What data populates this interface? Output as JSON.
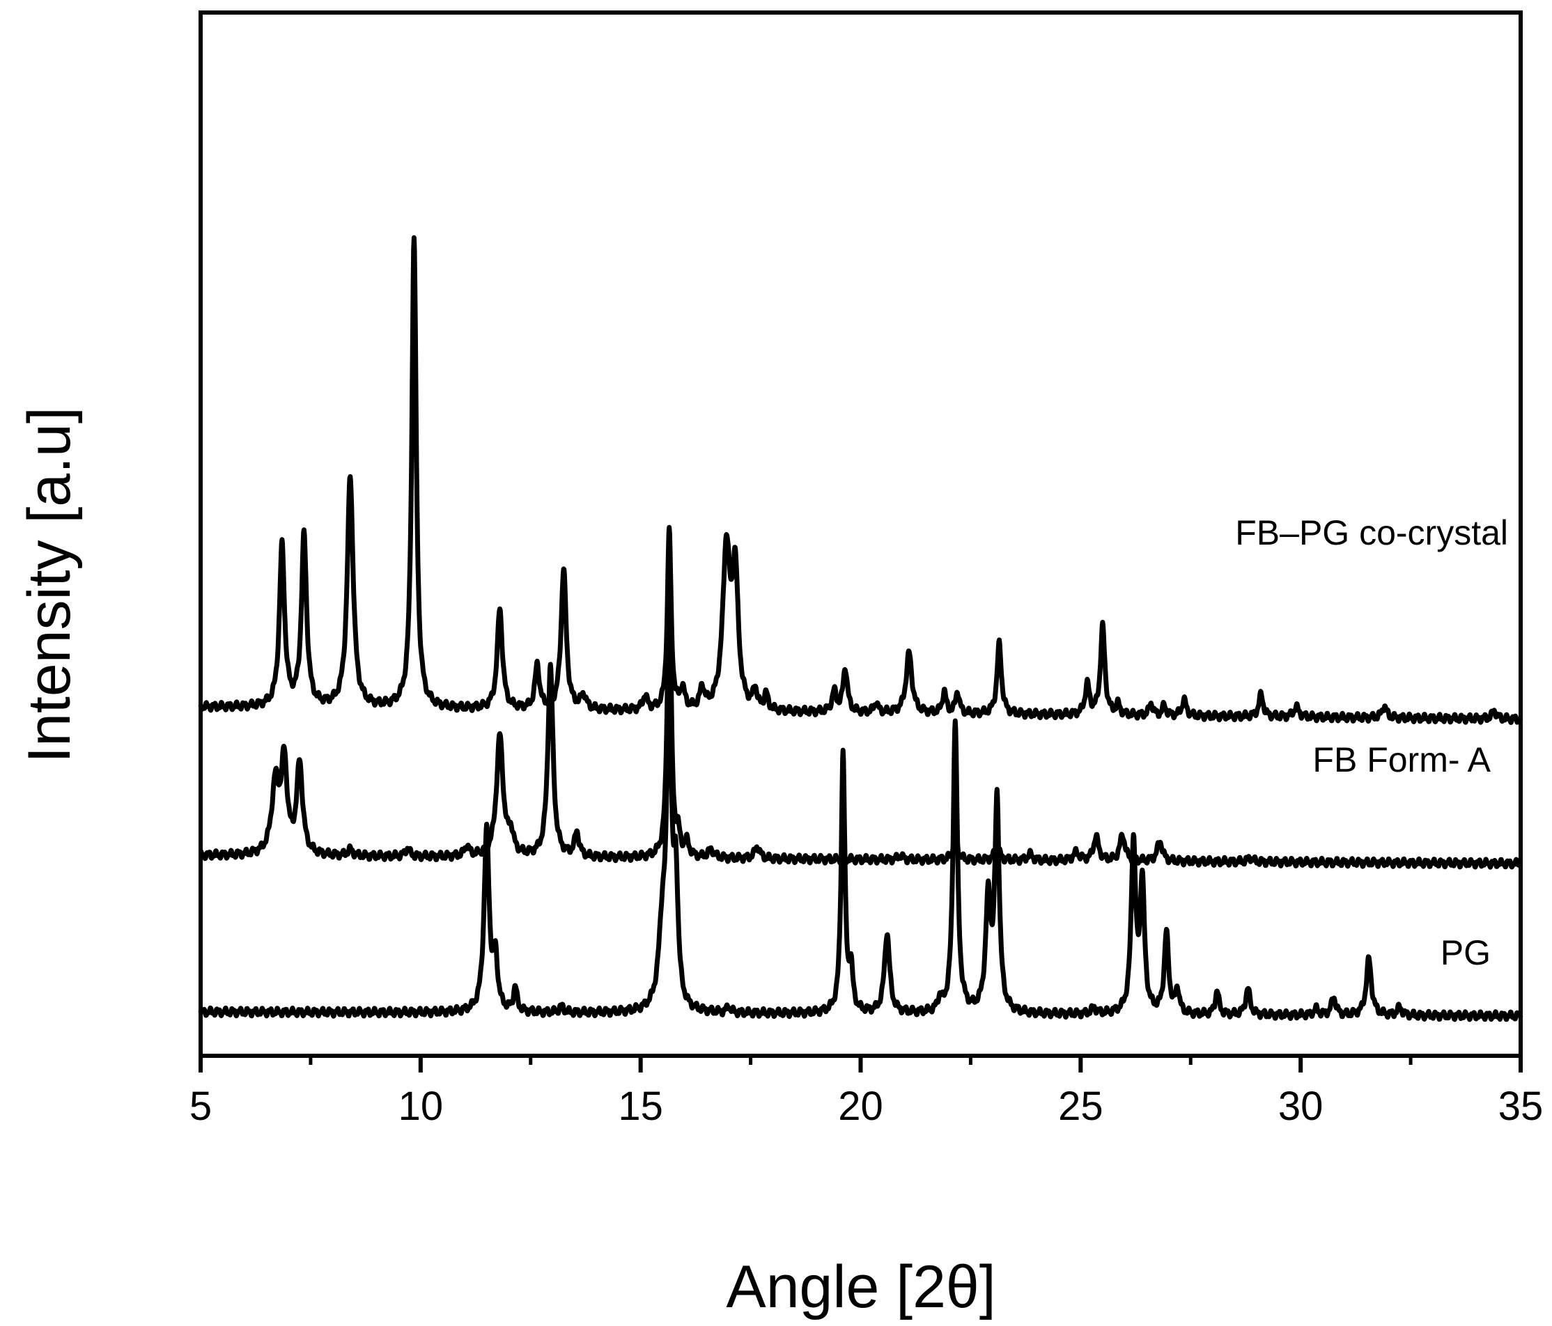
{
  "chart_data": {
    "type": "line",
    "title": "",
    "xlabel": "Angle [2θ]",
    "ylabel": "Intensity [a.u]",
    "xlim": [
      5,
      35
    ],
    "x_ticks": [
      5,
      10,
      15,
      20,
      25,
      30,
      35
    ],
    "grid": false,
    "legend": "labels placed at right end of each trace",
    "series": [
      {
        "name": "FB–PG co-crystal",
        "baseline": 1.52,
        "baseline_end": 1.46,
        "peaks": [
          {
            "x": 6.85,
            "h": 0.8,
            "w": 0.07
          },
          {
            "x": 7.35,
            "h": 0.85,
            "w": 0.07
          },
          {
            "x": 8.4,
            "h": 1.15,
            "w": 0.08
          },
          {
            "x": 9.85,
            "h": 2.35,
            "w": 0.06
          },
          {
            "x": 11.8,
            "h": 0.5,
            "w": 0.07
          },
          {
            "x": 12.65,
            "h": 0.22,
            "w": 0.06
          },
          {
            "x": 13.25,
            "h": 0.7,
            "w": 0.07
          },
          {
            "x": 13.7,
            "h": 0.07,
            "w": 0.07
          },
          {
            "x": 15.1,
            "h": 0.07,
            "w": 0.06
          },
          {
            "x": 15.65,
            "h": 0.9,
            "w": 0.05
          },
          {
            "x": 15.95,
            "h": 0.1,
            "w": 0.06
          },
          {
            "x": 16.4,
            "h": 0.1,
            "w": 0.06
          },
          {
            "x": 16.95,
            "h": 0.8,
            "w": 0.1
          },
          {
            "x": 17.15,
            "h": 0.65,
            "w": 0.08
          },
          {
            "x": 17.6,
            "h": 0.1,
            "w": 0.05
          },
          {
            "x": 17.85,
            "h": 0.08,
            "w": 0.05
          },
          {
            "x": 19.4,
            "h": 0.1,
            "w": 0.06
          },
          {
            "x": 19.65,
            "h": 0.22,
            "w": 0.06
          },
          {
            "x": 20.35,
            "h": 0.05,
            "w": 0.05
          },
          {
            "x": 21.1,
            "h": 0.3,
            "w": 0.08
          },
          {
            "x": 21.9,
            "h": 0.11,
            "w": 0.05
          },
          {
            "x": 22.2,
            "h": 0.11,
            "w": 0.05
          },
          {
            "x": 23.15,
            "h": 0.35,
            "w": 0.06
          },
          {
            "x": 25.15,
            "h": 0.15,
            "w": 0.06
          },
          {
            "x": 25.5,
            "h": 0.44,
            "w": 0.06
          },
          {
            "x": 25.85,
            "h": 0.05,
            "w": 0.05
          },
          {
            "x": 26.6,
            "h": 0.06,
            "w": 0.05
          },
          {
            "x": 26.9,
            "h": 0.05,
            "w": 0.05
          },
          {
            "x": 27.35,
            "h": 0.08,
            "w": 0.06
          },
          {
            "x": 29.1,
            "h": 0.11,
            "w": 0.06
          },
          {
            "x": 29.9,
            "h": 0.05,
            "w": 0.07
          },
          {
            "x": 31.9,
            "h": 0.06,
            "w": 0.06
          },
          {
            "x": 34.4,
            "h": 0.04,
            "w": 0.06
          }
        ]
      },
      {
        "name": "FB Form- A",
        "baseline": 0.78,
        "baseline_end": 0.74,
        "peaks": [
          {
            "x": 6.7,
            "h": 0.35,
            "w": 0.1
          },
          {
            "x": 6.9,
            "h": 0.45,
            "w": 0.08
          },
          {
            "x": 7.25,
            "h": 0.45,
            "w": 0.08
          },
          {
            "x": 8.4,
            "h": 0.03,
            "w": 0.07
          },
          {
            "x": 9.7,
            "h": 0.04,
            "w": 0.06
          },
          {
            "x": 11.05,
            "h": 0.05,
            "w": 0.06
          },
          {
            "x": 11.8,
            "h": 0.6,
            "w": 0.09
          },
          {
            "x": 12.05,
            "h": 0.1,
            "w": 0.07
          },
          {
            "x": 12.95,
            "h": 0.95,
            "w": 0.07
          },
          {
            "x": 13.55,
            "h": 0.12,
            "w": 0.06
          },
          {
            "x": 15.65,
            "h": 1.5,
            "w": 0.05
          },
          {
            "x": 15.85,
            "h": 0.1,
            "w": 0.05
          },
          {
            "x": 16.05,
            "h": 0.07,
            "w": 0.06
          },
          {
            "x": 16.6,
            "h": 0.04,
            "w": 0.08
          },
          {
            "x": 17.65,
            "h": 0.06,
            "w": 0.07
          },
          {
            "x": 20.9,
            "h": 0.02,
            "w": 0.07
          },
          {
            "x": 22.15,
            "h": 0.15,
            "w": 0.05
          },
          {
            "x": 23.1,
            "h": 0.08,
            "w": 0.06
          },
          {
            "x": 23.85,
            "h": 0.03,
            "w": 0.07
          },
          {
            "x": 24.9,
            "h": 0.04,
            "w": 0.08
          },
          {
            "x": 25.35,
            "h": 0.12,
            "w": 0.07
          },
          {
            "x": 25.95,
            "h": 0.13,
            "w": 0.07
          },
          {
            "x": 26.8,
            "h": 0.1,
            "w": 0.07
          },
          {
            "x": 28.85,
            "h": 0.02,
            "w": 0.07
          }
        ]
      },
      {
        "name": "PG",
        "baseline": 0.0,
        "baseline_end": -0.02,
        "peaks": [
          {
            "x": 11.5,
            "h": 0.9,
            "w": 0.07
          },
          {
            "x": 11.7,
            "h": 0.25,
            "w": 0.06
          },
          {
            "x": 12.15,
            "h": 0.12,
            "w": 0.05
          },
          {
            "x": 13.2,
            "h": 0.03,
            "w": 0.06
          },
          {
            "x": 15.5,
            "h": 0.4,
            "w": 0.1
          },
          {
            "x": 15.65,
            "h": 1.6,
            "w": 0.06
          },
          {
            "x": 15.8,
            "h": 0.6,
            "w": 0.06
          },
          {
            "x": 17.0,
            "h": 0.03,
            "w": 0.05
          },
          {
            "x": 19.6,
            "h": 1.3,
            "w": 0.05
          },
          {
            "x": 19.78,
            "h": 0.2,
            "w": 0.05
          },
          {
            "x": 20.6,
            "h": 0.4,
            "w": 0.07
          },
          {
            "x": 21.8,
            "h": 0.06,
            "w": 0.05
          },
          {
            "x": 22.15,
            "h": 1.45,
            "w": 0.06
          },
          {
            "x": 22.9,
            "h": 0.55,
            "w": 0.07
          },
          {
            "x": 23.1,
            "h": 1.05,
            "w": 0.06
          },
          {
            "x": 25.3,
            "h": 0.03,
            "w": 0.06
          },
          {
            "x": 26.2,
            "h": 0.85,
            "w": 0.06
          },
          {
            "x": 26.4,
            "h": 0.65,
            "w": 0.06
          },
          {
            "x": 26.95,
            "h": 0.4,
            "w": 0.06
          },
          {
            "x": 27.2,
            "h": 0.12,
            "w": 0.05
          },
          {
            "x": 28.1,
            "h": 0.12,
            "w": 0.05
          },
          {
            "x": 28.8,
            "h": 0.13,
            "w": 0.06
          },
          {
            "x": 30.35,
            "h": 0.03,
            "w": 0.06
          },
          {
            "x": 30.75,
            "h": 0.09,
            "w": 0.06
          },
          {
            "x": 31.55,
            "h": 0.28,
            "w": 0.07
          },
          {
            "x": 32.25,
            "h": 0.04,
            "w": 0.06
          }
        ]
      }
    ]
  }
}
